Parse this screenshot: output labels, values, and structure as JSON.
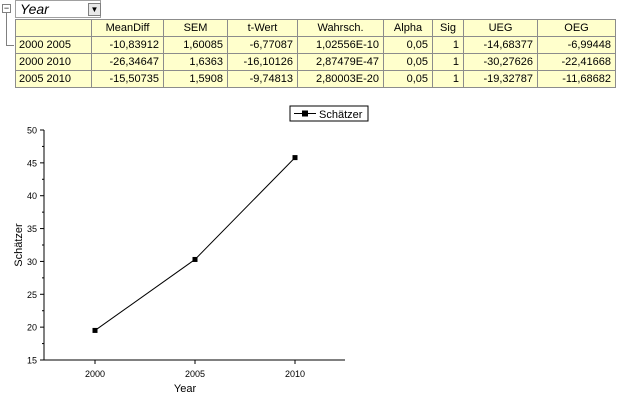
{
  "group": {
    "collapse_symbol": "−",
    "selector_label": "Year",
    "dropdown_symbol": "▼"
  },
  "table": {
    "columns": [
      "",
      "MeanDiff",
      "SEM",
      "t-Wert",
      "Wahrsch.",
      "Alpha",
      "Sig",
      "UEG",
      "OEG"
    ],
    "rows": [
      [
        "2000 2005",
        "-10,83912",
        "1,60085",
        "-6,77087",
        "1,02556E-10",
        "0,05",
        "1",
        "-14,68377",
        "-6,99448"
      ],
      [
        "2000 2010",
        "-26,34647",
        "1,6363",
        "-16,10126",
        "2,87479E-47",
        "0,05",
        "1",
        "-30,27626",
        "-22,41668"
      ],
      [
        "2005 2010",
        "-15,50735",
        "1,5908",
        "-9,74813",
        "2,80003E-20",
        "0,05",
        "1",
        "-19,32787",
        "-11,68682"
      ]
    ]
  },
  "chart_data": {
    "type": "line",
    "categories": [
      "2000",
      "2005",
      "2010"
    ],
    "series": [
      {
        "name": "Schätzer",
        "values": [
          19.5,
          30.3,
          45.8
        ],
        "color": "#000000",
        "marker": "square"
      }
    ],
    "xlabel": "Year",
    "ylabel": "Schätzer",
    "ylim": [
      15,
      50
    ],
    "yticks": [
      "15",
      "20",
      "25",
      "30",
      "35",
      "40",
      "45",
      "50"
    ],
    "legend": "top-center",
    "grid": false
  }
}
